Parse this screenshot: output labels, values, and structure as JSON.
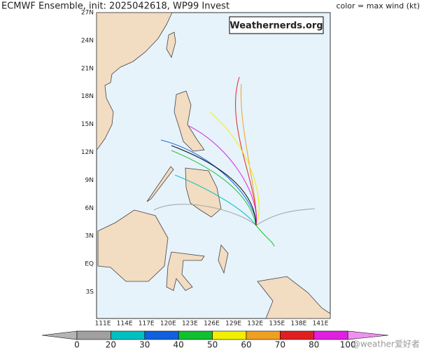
{
  "header": {
    "title": "ECMWF Ensemble, init: 2025042618, WP99 Invest",
    "legend_note": "color = max wind (kt)"
  },
  "map": {
    "credit_box": "Weathernerds.org",
    "lat_labels": [
      "27N",
      "24N",
      "21N",
      "18N",
      "15N",
      "12N",
      "9N",
      "6N",
      "3N",
      "EQ",
      "3S"
    ],
    "lon_labels": [
      "111E",
      "114E",
      "117E",
      "120E",
      "123E",
      "126E",
      "129E",
      "132E",
      "135E",
      "138E",
      "141E"
    ]
  },
  "colorbar": {
    "labels": [
      0,
      20,
      30,
      40,
      50,
      60,
      70,
      80,
      100
    ],
    "colors": [
      "#b4b4b4",
      "#a0a0a0",
      "#00c0c0",
      "#1060e0",
      "#10c030",
      "#f0f000",
      "#f0a020",
      "#e02020",
      "#e020e0",
      "#f090f0"
    ]
  },
  "footer": {
    "watermark": "@weather爱好者"
  }
}
